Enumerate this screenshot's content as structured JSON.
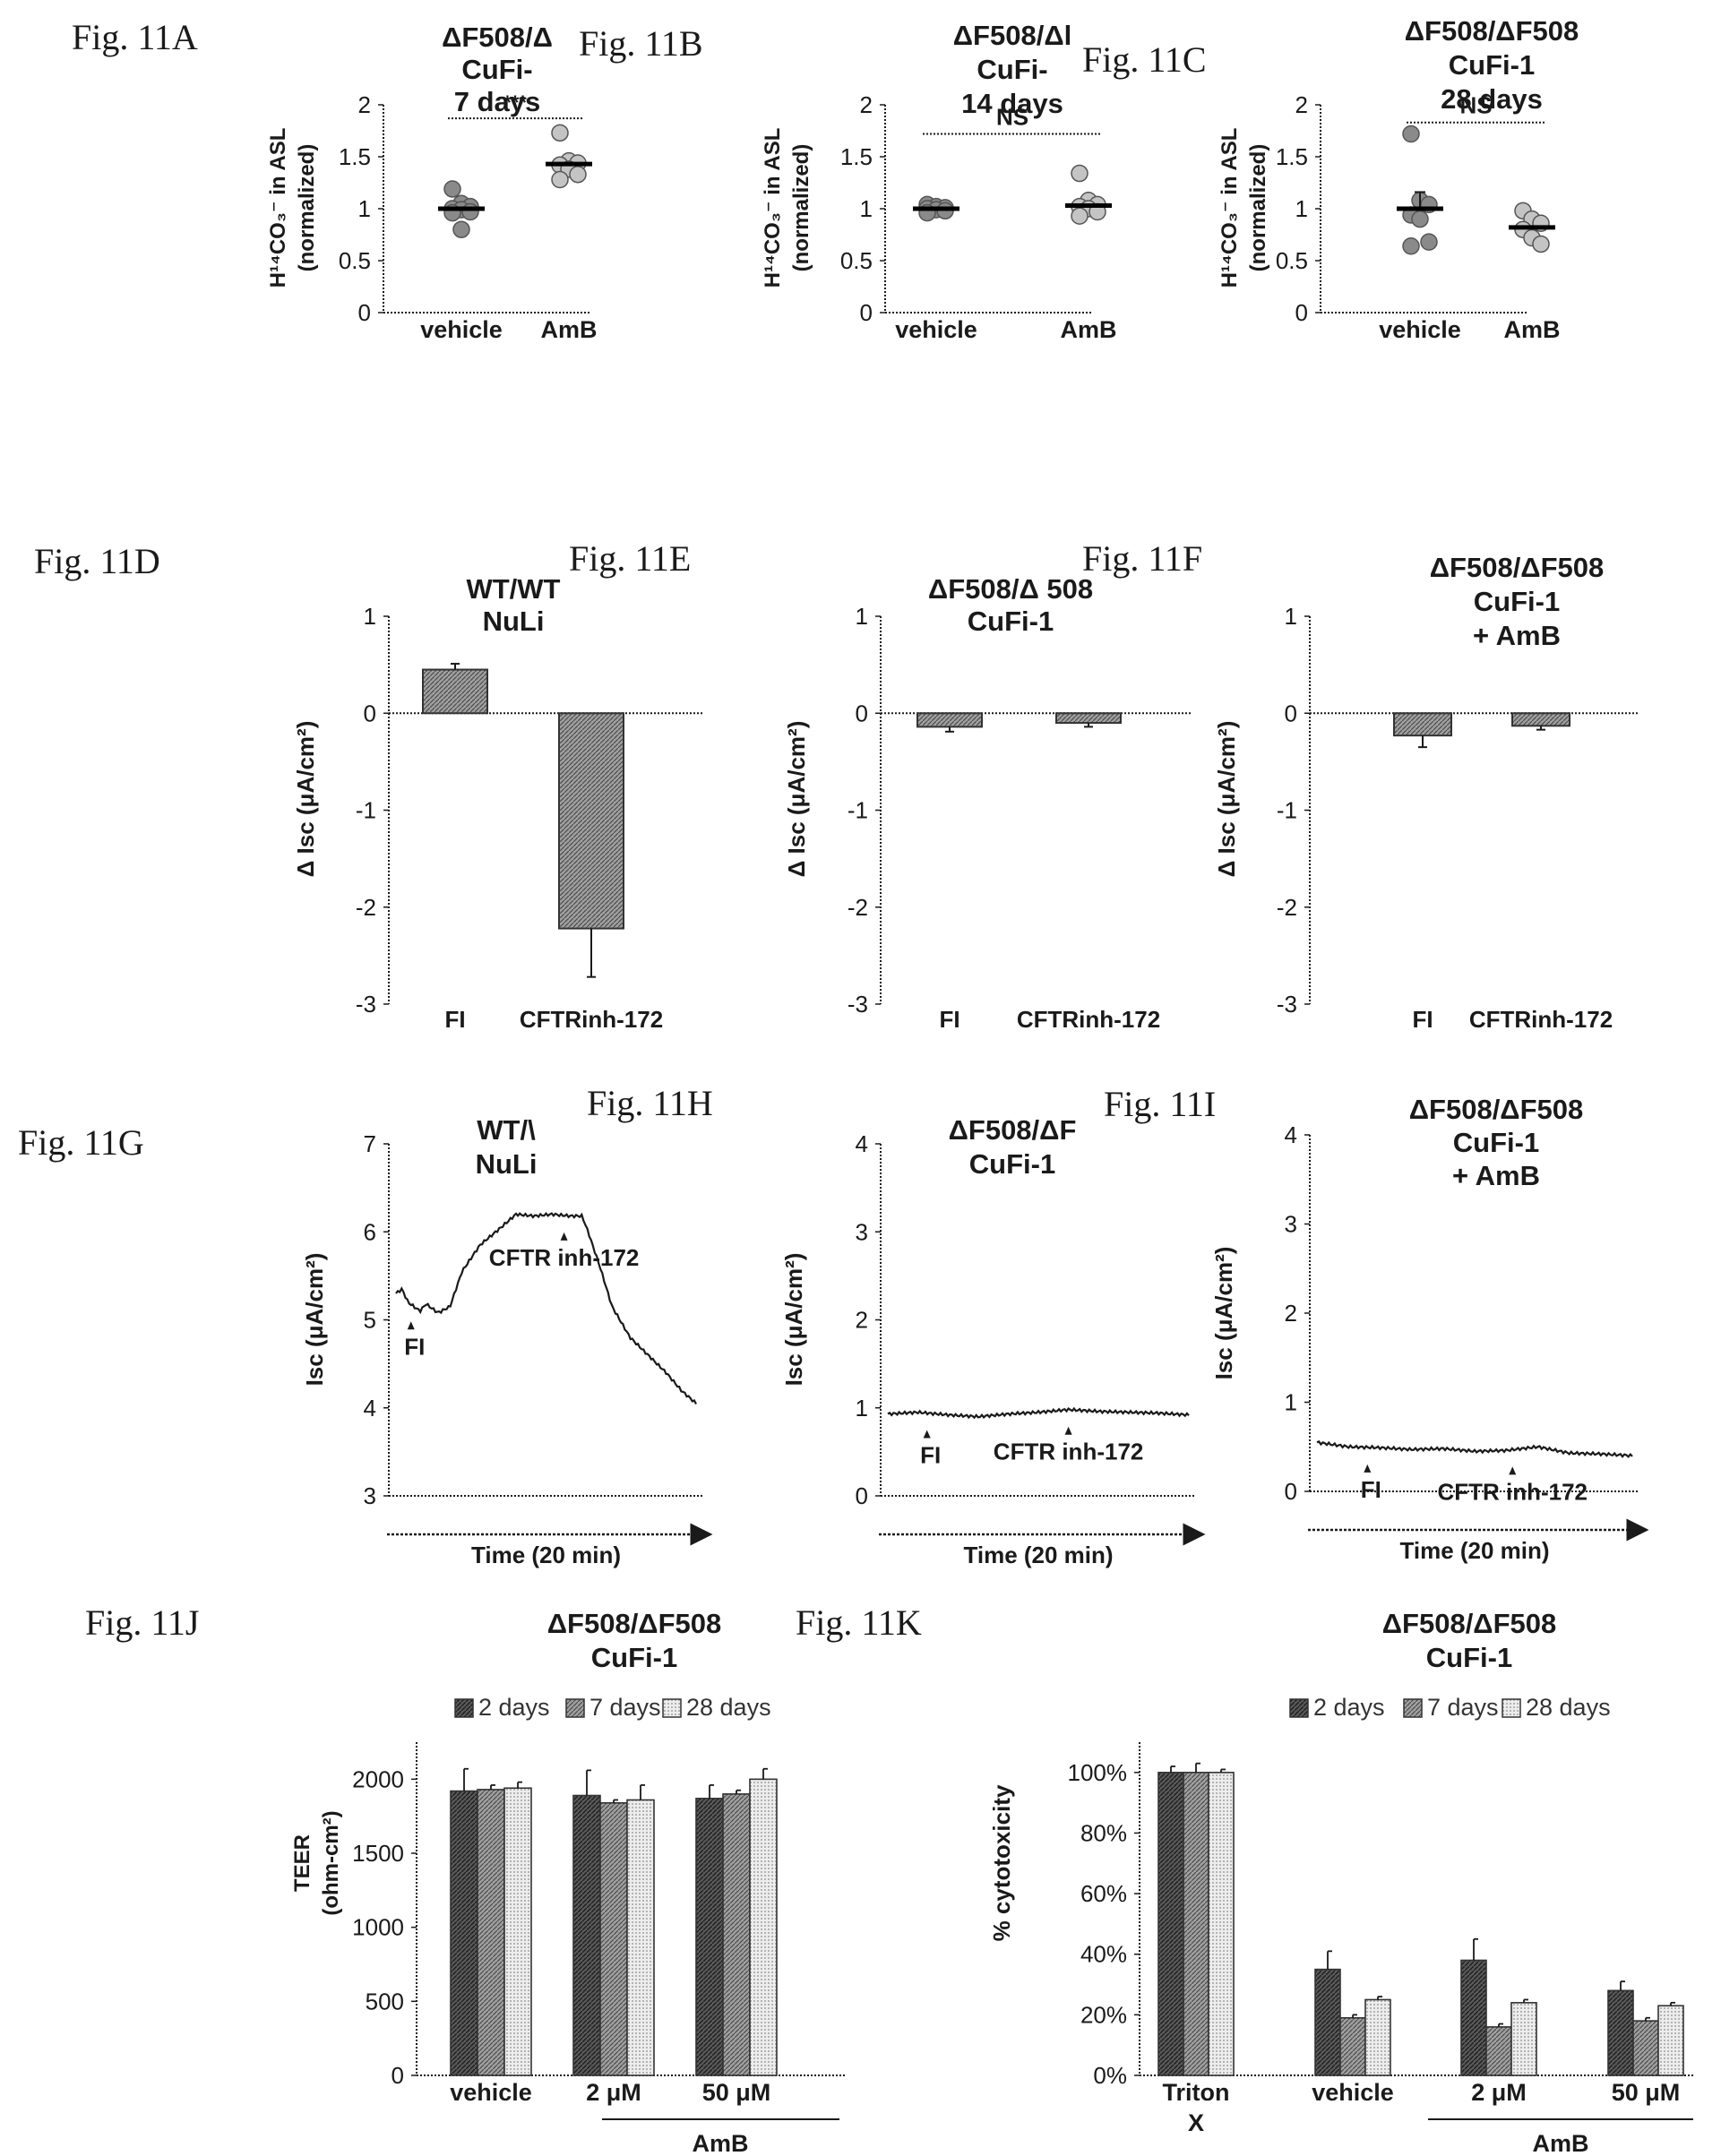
{
  "colors": {
    "ink": "#1a1a1a",
    "dark_hatch": "#4a4a4a",
    "mid_hatch": "#8a8a8a",
    "light_hatch": "#c8c8c8",
    "dot": "#7f7f7f"
  },
  "chart_data": [
    {
      "id": "A",
      "type": "scatter",
      "fig_label": "Fig. 11A",
      "title_lines": [
        "ΔF508/Δ",
        "CuFi-",
        "7 days"
      ],
      "ylabel_lines": [
        "H¹⁴CO₃⁻ in ASL",
        "(normalized)"
      ],
      "yticks": [
        "0",
        "0.5",
        "1",
        "1.5",
        "2"
      ],
      "ylim": [
        0,
        2
      ],
      "categories": [
        "vehicle",
        "AmB"
      ],
      "points": [
        [
          1.19,
          1.05,
          1.02,
          1.0,
          0.99,
          0.97,
          0.96,
          0.8
        ],
        [
          1.73,
          1.46,
          1.44,
          1.42,
          1.38,
          1.33,
          1.28
        ]
      ],
      "means": [
        1.0,
        1.43
      ],
      "significance": "***"
    },
    {
      "id": "B",
      "type": "scatter",
      "fig_label": "Fig. 11B",
      "title_lines": [
        "ΔF508/Δl",
        "CuFi-",
        "14 days"
      ],
      "ylabel_lines": [
        "H¹⁴CO₃⁻ in ASL",
        "(normalized)"
      ],
      "yticks": [
        "0",
        "0.5",
        "1",
        "1.5",
        "2"
      ],
      "ylim": [
        0,
        2
      ],
      "categories": [
        "vehicle",
        "AmB"
      ],
      "points": [
        [
          1.04,
          1.02,
          1.01,
          1.0,
          0.99,
          0.98,
          0.96
        ],
        [
          1.34,
          1.08,
          1.04,
          1.02,
          1.0,
          0.97,
          0.93
        ]
      ],
      "means": [
        1.0,
        1.03
      ],
      "significance": "NS"
    },
    {
      "id": "C",
      "type": "scatter",
      "fig_label": "Fig. 11C",
      "title_lines": [
        "ΔF508/ΔF508",
        "CuFi-1",
        "28 days"
      ],
      "ylabel_lines": [
        "H¹⁴CO₃⁻ in ASL",
        "(normalized)"
      ],
      "yticks": [
        "0",
        "0.5",
        "1",
        "1.5",
        "2"
      ],
      "ylim": [
        0,
        2
      ],
      "categories": [
        "vehicle",
        "AmB"
      ],
      "points": [
        [
          1.72,
          1.08,
          1.04,
          0.94,
          0.9,
          0.68,
          0.64
        ],
        [
          0.98,
          0.9,
          0.86,
          0.8,
          0.72,
          0.66
        ]
      ],
      "means": [
        1.0,
        0.82
      ],
      "errors": [
        0.16,
        0.0
      ],
      "significance": "NS"
    },
    {
      "id": "D",
      "type": "bar",
      "fig_label": "Fig. 11D",
      "title_lines": [
        "WT/WT",
        "NuLi"
      ],
      "ylabel": "Δ Isc (μA/cm²)",
      "yticks": [
        "-3",
        "-2",
        "-1",
        "0",
        "1"
      ],
      "ylim": [
        -3,
        1
      ],
      "categories": [
        "FI",
        "CFTRinh-172"
      ],
      "values": [
        0.45,
        -2.22
      ],
      "errors": [
        0.06,
        0.5
      ]
    },
    {
      "id": "E",
      "type": "bar",
      "fig_label": "Fig. 11E",
      "title_lines": [
        "ΔF508/Δ  508",
        "CuFi-1"
      ],
      "ylabel": "Δ Isc (μA/cm²)",
      "yticks": [
        "-3",
        "-2",
        "-1",
        "0",
        "1"
      ],
      "ylim": [
        -3,
        1
      ],
      "categories": [
        "FI",
        "CFTRinh-172"
      ],
      "values": [
        -0.14,
        -0.1
      ],
      "errors": [
        0.05,
        0.04
      ]
    },
    {
      "id": "F",
      "type": "bar",
      "fig_label": "Fig. 11F",
      "title_lines": [
        "ΔF508/ΔF508",
        "CuFi-1",
        "+ AmB"
      ],
      "ylabel": "Δ Isc (μA/cm²)",
      "yticks": [
        "-3",
        "-2",
        "-1",
        "0",
        "1"
      ],
      "ylim": [
        -3,
        1
      ],
      "categories": [
        "FI",
        "CFTRinh-172"
      ],
      "values": [
        -0.23,
        -0.13
      ],
      "errors": [
        0.12,
        0.04
      ]
    },
    {
      "id": "G",
      "type": "line",
      "fig_label": "Fig. 11G",
      "title_lines": [
        "WT/\\",
        "NuLi"
      ],
      "ylabel": "Isc (μA/cm²)",
      "xlabel": "Time (20 min)",
      "yticks": [
        "3",
        "4",
        "5",
        "6",
        "7"
      ],
      "ylim": [
        3,
        7
      ],
      "x": [
        0,
        0.02,
        0.04,
        0.08,
        0.1,
        0.14,
        0.18,
        0.22,
        0.28,
        0.35,
        0.4,
        0.46,
        0.52,
        0.58,
        0.62,
        0.64,
        0.68,
        0.72,
        0.78,
        0.84,
        0.9,
        0.95,
        1.0
      ],
      "y": [
        5.3,
        5.35,
        5.2,
        5.1,
        5.18,
        5.08,
        5.15,
        5.55,
        5.85,
        6.05,
        6.2,
        6.18,
        6.2,
        6.18,
        6.18,
        6.0,
        5.6,
        5.15,
        4.8,
        4.6,
        4.4,
        4.2,
        4.05
      ],
      "annotations": [
        {
          "text": "FI",
          "x": 0.05
        },
        {
          "text": "CFTR inh-172",
          "x": 0.56
        }
      ]
    },
    {
      "id": "H",
      "type": "line",
      "fig_label": "Fig. 11H",
      "title_lines": [
        "ΔF508/ΔF",
        "CuFi-1"
      ],
      "ylabel": "Isc (μA/cm²)",
      "xlabel": "Time (20 min)",
      "yticks": [
        "0",
        "1",
        "2",
        "3",
        "4"
      ],
      "ylim": [
        0,
        4
      ],
      "x": [
        0,
        0.1,
        0.2,
        0.3,
        0.4,
        0.5,
        0.6,
        0.7,
        0.8,
        0.9,
        1.0
      ],
      "y": [
        0.93,
        0.95,
        0.92,
        0.9,
        0.93,
        0.95,
        0.98,
        0.96,
        0.95,
        0.94,
        0.92
      ],
      "annotations": [
        {
          "text": "FI",
          "x": 0.13
        },
        {
          "text": "CFTR inh-172",
          "x": 0.6
        }
      ]
    },
    {
      "id": "I",
      "type": "line",
      "fig_label": "Fig. 11I",
      "title_lines": [
        "ΔF508/ΔF508",
        "CuFi-1",
        "+ AmB"
      ],
      "ylabel": "Isc (μA/cm²)",
      "xlabel": "Time (20 min)",
      "yticks": [
        "0",
        "1",
        "2",
        "3",
        "4"
      ],
      "ylim": [
        0,
        4
      ],
      "x": [
        0,
        0.1,
        0.2,
        0.3,
        0.4,
        0.5,
        0.6,
        0.7,
        0.8,
        0.9,
        1.0
      ],
      "y": [
        0.55,
        0.5,
        0.49,
        0.47,
        0.48,
        0.45,
        0.46,
        0.5,
        0.43,
        0.42,
        0.4
      ],
      "annotations": [
        {
          "text": "FI",
          "x": 0.16
        },
        {
          "text": "CFTR inh-172",
          "x": 0.62
        }
      ]
    },
    {
      "id": "J",
      "type": "bar",
      "fig_label": "Fig. 11J",
      "title_lines": [
        "ΔF508/ΔF508",
        "CuFi-1"
      ],
      "ylabel_lines": [
        "TEER",
        "(ohm-cm²)"
      ],
      "yticks": [
        "0",
        "500",
        "1000",
        "1500",
        "2000"
      ],
      "ylim": [
        0,
        2250
      ],
      "categories": [
        "vehicle",
        "2 μM",
        "50 μM"
      ],
      "group_label": "AmB",
      "legend_position": "top",
      "series": [
        {
          "name": "2 days",
          "values": [
            1920,
            1890,
            1870
          ],
          "errors": [
            150,
            170,
            90
          ]
        },
        {
          "name": "7 days",
          "values": [
            1930,
            1840,
            1900
          ],
          "errors": [
            30,
            20,
            25
          ]
        },
        {
          "name": "28 days",
          "values": [
            1940,
            1860,
            2000
          ],
          "errors": [
            40,
            100,
            70
          ]
        }
      ]
    },
    {
      "id": "K",
      "type": "bar",
      "fig_label": "Fig. 11K",
      "title_lines": [
        "ΔF508/ΔF508",
        "CuFi-1"
      ],
      "ylabel": "% cytotoxicity",
      "yticks": [
        "0%",
        "20%",
        "40%",
        "60%",
        "80%",
        "100%"
      ],
      "ylim": [
        0,
        110
      ],
      "categories": [
        "Triton X",
        "vehicle",
        "2 μM",
        "50 μM"
      ],
      "category_lines": [
        [
          "Triton",
          "X"
        ],
        [
          "vehicle"
        ],
        [
          "2 μM"
        ],
        [
          "50 μM"
        ]
      ],
      "group_label": "AmB",
      "legend_position": "top",
      "series": [
        {
          "name": "2 days",
          "values": [
            100,
            35,
            38,
            28
          ],
          "errors": [
            2,
            6,
            7,
            3
          ]
        },
        {
          "name": "7 days",
          "values": [
            100,
            19,
            16,
            18
          ],
          "errors": [
            3,
            1,
            1,
            1
          ]
        },
        {
          "name": "28 days",
          "values": [
            100,
            25,
            24,
            23
          ],
          "errors": [
            1,
            1,
            1,
            1
          ]
        }
      ]
    }
  ]
}
